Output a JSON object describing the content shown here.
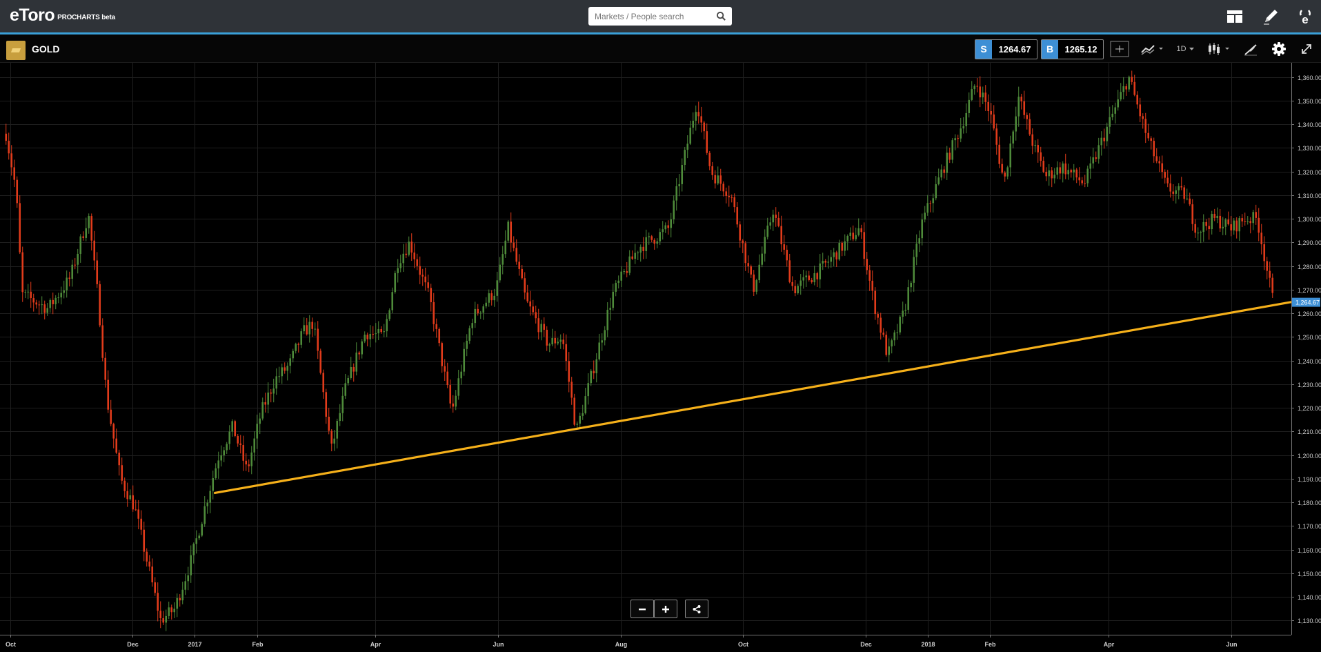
{
  "app": {
    "logo_text": "eToro",
    "logo_sub": "PROCHARTS beta"
  },
  "search": {
    "placeholder": "Markets / People search"
  },
  "instrument": {
    "name": "GOLD",
    "sell_label": "S",
    "sell_price": "1264.67",
    "buy_label": "B",
    "buy_price": "1265.12"
  },
  "toolbar": {
    "timeframe": "1D"
  },
  "icons": {
    "search": "search-icon",
    "layout": "layout-icon",
    "pencil": "pencil-icon",
    "profile": "etoro-e-icon",
    "crosshair": "crosshair-icon",
    "indicators": "indicators-icon",
    "candles": "candlestick-icon",
    "drawing": "drawing-tools-icon",
    "settings": "gear-icon",
    "fullscreen": "fullscreen-icon",
    "zoom_out": "minus-icon",
    "zoom_in": "plus-icon",
    "share": "share-icon"
  },
  "colors": {
    "up": "#4e8a3a",
    "down": "#e13b1b",
    "trendline": "#f5b01a",
    "accent": "#3aa0d8",
    "price_tag": "#3d8fd5"
  },
  "chart_data": {
    "type": "candlestick",
    "current_price_label": "1,264.67",
    "x_labels": [
      "Oct",
      "Dec",
      "2017",
      "Feb",
      "Apr",
      "Jun",
      "Aug",
      "Oct",
      "Dec",
      "2018",
      "Feb",
      "Apr",
      "Jun"
    ],
    "y_ticks": [
      "1,130.00",
      "1,140.00",
      "1,150.00",
      "1,160.00",
      "1,170.00",
      "1,180.00",
      "1,190.00",
      "1,200.00",
      "1,210.00",
      "1,220.00",
      "1,230.00",
      "1,240.00",
      "1,250.00",
      "1,260.00",
      "1,270.00",
      "1,280.00",
      "1,290.00",
      "1,300.00",
      "1,310.00",
      "1,320.00",
      "1,330.00",
      "1,340.00",
      "1,350.00",
      "1,360.00"
    ],
    "ylim": [
      1124,
      1366
    ],
    "price_path": [
      [
        "2016-09-29",
        1336
      ],
      [
        "2016-10-04",
        1312
      ],
      [
        "2016-10-07",
        1268
      ],
      [
        "2016-10-20",
        1262
      ],
      [
        "2016-10-31",
        1275
      ],
      [
        "2016-11-09",
        1302
      ],
      [
        "2016-11-14",
        1265
      ],
      [
        "2016-11-18",
        1225
      ],
      [
        "2016-11-25",
        1190
      ],
      [
        "2016-12-02",
        1178
      ],
      [
        "2016-12-15",
        1130
      ],
      [
        "2016-12-22",
        1135
      ],
      [
        "2016-12-30",
        1155
      ],
      [
        "2017-01-06",
        1178
      ],
      [
        "2017-01-13",
        1200
      ],
      [
        "2017-01-20",
        1212
      ],
      [
        "2017-01-27",
        1193
      ],
      [
        "2017-02-03",
        1218
      ],
      [
        "2017-02-10",
        1232
      ],
      [
        "2017-02-17",
        1238
      ],
      [
        "2017-02-24",
        1252
      ],
      [
        "2017-03-01",
        1256
      ],
      [
        "2017-03-10",
        1202
      ],
      [
        "2017-03-17",
        1228
      ],
      [
        "2017-03-27",
        1252
      ],
      [
        "2017-04-05",
        1250
      ],
      [
        "2017-04-12",
        1282
      ],
      [
        "2017-04-18",
        1290
      ],
      [
        "2017-04-28",
        1266
      ],
      [
        "2017-05-09",
        1218
      ],
      [
        "2017-05-19",
        1258
      ],
      [
        "2017-05-31",
        1270
      ],
      [
        "2017-06-06",
        1296
      ],
      [
        "2017-06-15",
        1265
      ],
      [
        "2017-06-26",
        1247
      ],
      [
        "2017-07-03",
        1250
      ],
      [
        "2017-07-10",
        1210
      ],
      [
        "2017-07-17",
        1232
      ],
      [
        "2017-07-28",
        1268
      ],
      [
        "2017-08-10",
        1288
      ],
      [
        "2017-08-18",
        1292
      ],
      [
        "2017-08-25",
        1296
      ],
      [
        "2017-09-08",
        1350
      ],
      [
        "2017-09-15",
        1320
      ],
      [
        "2017-09-25",
        1310
      ],
      [
        "2017-10-06",
        1270
      ],
      [
        "2017-10-16",
        1304
      ],
      [
        "2017-10-26",
        1270
      ],
      [
        "2017-11-08",
        1278
      ],
      [
        "2017-11-28",
        1296
      ],
      [
        "2017-12-05",
        1265
      ],
      [
        "2017-12-12",
        1242
      ],
      [
        "2017-12-20",
        1260
      ],
      [
        "2017-12-29",
        1298
      ],
      [
        "2018-01-08",
        1320
      ],
      [
        "2018-01-18",
        1340
      ],
      [
        "2018-01-25",
        1358
      ],
      [
        "2018-02-01",
        1345
      ],
      [
        "2018-02-08",
        1315
      ],
      [
        "2018-02-15",
        1352
      ],
      [
        "2018-02-23",
        1330
      ],
      [
        "2018-03-01",
        1318
      ],
      [
        "2018-03-09",
        1322
      ],
      [
        "2018-03-20",
        1315
      ],
      [
        "2018-04-02",
        1342
      ],
      [
        "2018-04-11",
        1360
      ],
      [
        "2018-04-20",
        1335
      ],
      [
        "2018-04-30",
        1313
      ],
      [
        "2018-05-09",
        1310
      ],
      [
        "2018-05-15",
        1295
      ],
      [
        "2018-05-24",
        1300
      ],
      [
        "2018-06-01",
        1296
      ],
      [
        "2018-06-08",
        1300
      ],
      [
        "2018-06-14",
        1300
      ],
      [
        "2018-06-22",
        1264.67
      ]
    ],
    "trendline": [
      [
        "2017-01-11",
        1184
      ],
      [
        "2018-06-28",
        1266
      ]
    ]
  }
}
